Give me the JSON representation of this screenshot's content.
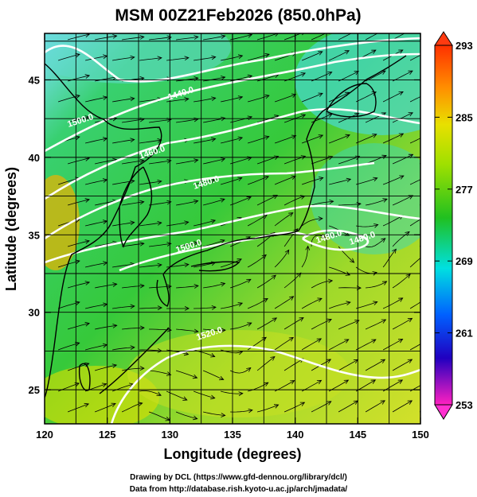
{
  "title": "MSM 00Z21Feb2026 (850.0hPa)",
  "xaxis": {
    "label": "Longitude (degrees)",
    "ticks": [
      "120",
      "125",
      "130",
      "135",
      "140",
      "145",
      "150"
    ]
  },
  "yaxis": {
    "label": "Latitude  (degrees)",
    "ticks": [
      "25",
      "30",
      "35",
      "40",
      "45"
    ]
  },
  "colorbar": {
    "ticks": [
      "293",
      "285",
      "277",
      "269",
      "261",
      "253"
    ]
  },
  "contour_labels": [
    "1500.0",
    "1440.0",
    "1460.0",
    "1480.0",
    "1500.0",
    "1480.0",
    "1480.0",
    "1520.0"
  ],
  "footer": {
    "line1": "Drawing by DCL (https://www.gfd-dennou.org/library/dcl/)",
    "line2": "Data from http://database.rish.kyoto-u.ac.jp/arch/jmadata/"
  },
  "colors": {
    "cold": "#1e88ff",
    "cool": "#00e0ff",
    "mid": "#2ecc40",
    "warm": "#d7e600",
    "hot": "#ff8000"
  }
}
